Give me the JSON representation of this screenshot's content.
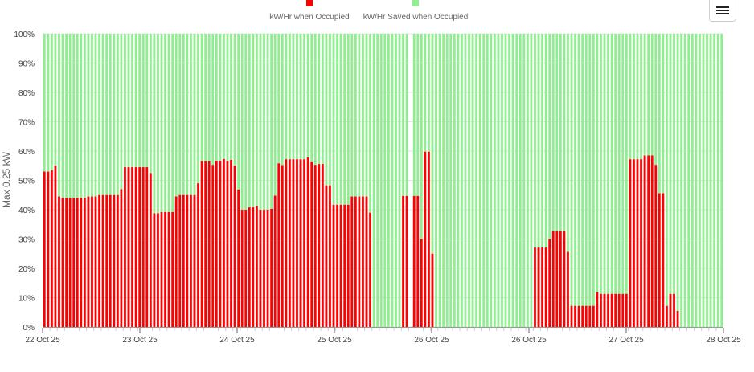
{
  "toolbar": {
    "menu_icon": "hamburger-menu-icon"
  },
  "chart_data": {
    "type": "bar",
    "stacked": true,
    "ylabel": "Max 0.25 kW",
    "ylim": [
      0,
      100
    ],
    "y_ticks": [
      "0%",
      "10%",
      "20%",
      "30%",
      "40%",
      "50%",
      "60%",
      "70%",
      "80%",
      "90%",
      "100%"
    ],
    "x_ticks": [
      "22 Oct 25",
      "23 Oct 25",
      "24 Oct 25",
      "25 Oct 25",
      "26 Oct 25",
      "26 Oct 25",
      "27 Oct 25",
      "28 Oct 25"
    ],
    "legend_position": "top-center",
    "grid": true,
    "series": [
      {
        "name": "kW/Hr when Occupied",
        "color": "#ff0000"
      },
      {
        "name": "kW/Hr Saved when Occupied",
        "color": "#90ee90"
      }
    ],
    "occupied_percent": [
      53,
      53,
      53.5,
      55,
      44.5,
      44,
      44,
      44,
      44,
      44,
      44,
      44,
      44.5,
      44.5,
      44.5,
      45,
      45,
      45,
      45,
      45,
      45,
      47,
      54.5,
      54.5,
      54.5,
      54.5,
      54.5,
      54.5,
      54.5,
      52.5,
      38.8,
      38.8,
      39.2,
      39.2,
      39.2,
      39.2,
      44.5,
      45,
      45,
      45,
      45,
      45,
      49,
      56.5,
      56.5,
      56.5,
      55.3,
      56.7,
      56.7,
      57.3,
      56.6,
      57,
      55,
      46.9,
      40,
      40,
      40.8,
      40.8,
      41.2,
      40,
      40,
      40,
      40.3,
      44.8,
      55.8,
      55.2,
      57.2,
      57.2,
      57.2,
      57.2,
      57.2,
      57.2,
      57.8,
      56.2,
      55.3,
      55.6,
      55.6,
      48.3,
      48.3,
      41.7,
      41.7,
      41.7,
      41.7,
      41.7,
      44.5,
      44.5,
      44.5,
      44.5,
      44.5,
      39,
      0,
      0,
      0,
      0,
      0,
      0,
      0,
      0,
      44.7,
      44.7,
      null,
      44.7,
      44.7,
      30,
      59.8,
      59.8,
      25,
      0,
      0,
      0,
      0,
      0,
      0,
      0,
      0,
      0,
      0,
      0,
      0,
      0,
      0,
      0,
      0,
      0,
      0,
      0,
      0,
      0,
      0,
      0,
      0,
      0,
      0,
      0,
      27.1,
      27.1,
      27.1,
      27.1,
      30,
      32.7,
      32.7,
      32.7,
      32.7,
      25.6,
      7.2,
      7.2,
      7.2,
      7.2,
      7.2,
      7.2,
      7.2,
      11.8,
      11.3,
      11.3,
      11.3,
      11.3,
      11.3,
      11.3,
      11.3,
      11.3,
      57.2,
      57.2,
      57.2,
      57.2,
      58.5,
      58.5,
      58.5,
      55.3,
      45.6,
      45.6,
      7.2,
      11.3,
      11.3,
      5.5,
      0,
      0,
      0,
      0,
      0,
      0,
      0,
      0,
      0,
      0,
      0,
      0
    ]
  }
}
